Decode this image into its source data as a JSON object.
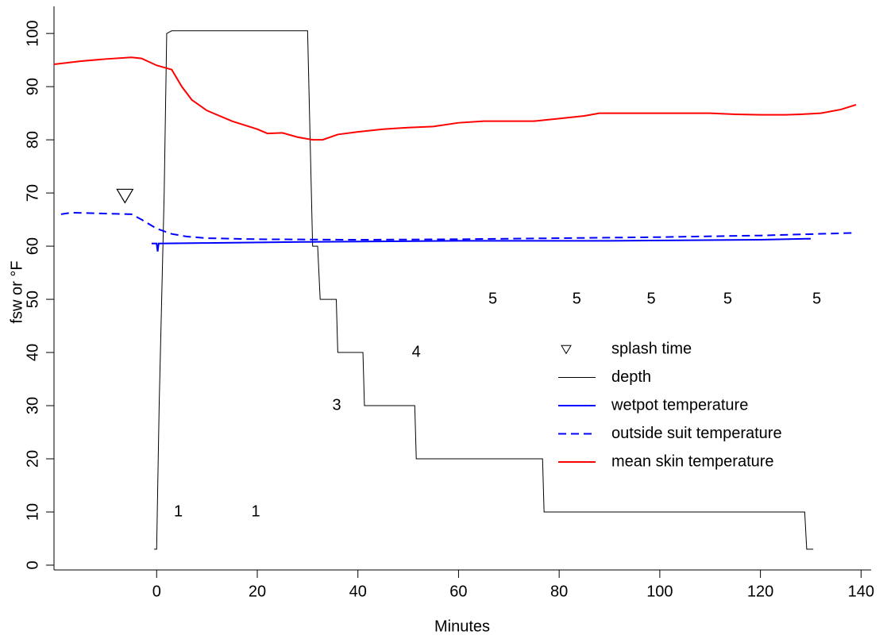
{
  "chart_data": {
    "type": "line",
    "xlabel": "Minutes",
    "ylabel": "fsw or °F",
    "xlim": [
      -20.4,
      142
    ],
    "xticks": [
      0,
      20,
      40,
      60,
      80,
      100,
      120,
      140
    ],
    "ylim": [
      -0.9,
      105.1
    ],
    "yticks": [
      0,
      10,
      20,
      30,
      40,
      50,
      60,
      70,
      80,
      90,
      100
    ],
    "series": [
      {
        "name": "depth",
        "color": "#000000",
        "dash": false,
        "width": 1,
        "x": [
          -0.5,
          0,
          0.5,
          1.5,
          2,
          3,
          30,
          31,
          32,
          32.5,
          35.7,
          36,
          41,
          41.3,
          51.3,
          51.6,
          76.7,
          77,
          128.8,
          129.2,
          130.5
        ],
        "values": [
          3,
          3,
          30,
          70,
          100,
          100.5,
          100.5,
          60,
          60,
          50,
          50,
          40,
          40,
          30,
          30,
          20,
          20,
          10,
          10,
          3,
          3
        ]
      },
      {
        "name": "wetpot temperature",
        "color": "#0000ff",
        "dash": false,
        "width": 2,
        "x": [
          -1,
          0,
          0.2,
          0.4,
          10,
          30,
          60,
          90,
          120,
          130
        ],
        "values": [
          60.5,
          60.5,
          59,
          60.5,
          60.6,
          60.8,
          61,
          61,
          61.2,
          61.4
        ]
      },
      {
        "name": "outside suit temperature",
        "color": "#0000ff",
        "dash": true,
        "width": 2,
        "x": [
          -19,
          -17,
          -5,
          -3,
          0,
          3,
          6,
          10,
          20,
          40,
          60,
          80,
          100,
          120,
          139
        ],
        "values": [
          66,
          66.3,
          66,
          65,
          63.3,
          62.3,
          61.8,
          61.5,
          61.3,
          61.2,
          61.3,
          61.5,
          61.7,
          62,
          62.5
        ]
      },
      {
        "name": "mean skin temperature",
        "color": "#ff0000",
        "dash": false,
        "width": 2,
        "x": [
          -20.4,
          -15,
          -10,
          -5,
          -3,
          0,
          3,
          5,
          7,
          10,
          15,
          20,
          22,
          25,
          28,
          31,
          33,
          36,
          40,
          45,
          50,
          55,
          60,
          65,
          70,
          75,
          80,
          85,
          88,
          100,
          110,
          115,
          120,
          125,
          128,
          132,
          136,
          139
        ],
        "values": [
          94.2,
          94.8,
          95.2,
          95.5,
          95.3,
          94,
          93.2,
          90,
          87.5,
          85.5,
          83.5,
          82,
          81.2,
          81.3,
          80.5,
          80,
          80,
          81,
          81.5,
          82,
          82.3,
          82.5,
          83.2,
          83.5,
          83.5,
          83.5,
          84,
          84.5,
          85,
          85,
          85,
          84.8,
          84.7,
          84.7,
          84.8,
          85,
          85.7,
          86.6
        ]
      }
    ],
    "markers": [
      {
        "name": "splash time",
        "x": -6.3,
        "y": 69.5
      }
    ],
    "annotations": [
      {
        "text": "1",
        "x": 4.3,
        "y": 10
      },
      {
        "text": "1",
        "x": 19.7,
        "y": 10
      },
      {
        "text": "3",
        "x": 35.8,
        "y": 30
      },
      {
        "text": "4",
        "x": 51.6,
        "y": 40
      },
      {
        "text": "5",
        "x": 66.8,
        "y": 50
      },
      {
        "text": "5",
        "x": 83.5,
        "y": 50
      },
      {
        "text": "5",
        "x": 98.3,
        "y": 50
      },
      {
        "text": "5",
        "x": 113.5,
        "y": 50
      },
      {
        "text": "5",
        "x": 131.2,
        "y": 50
      }
    ]
  }
}
